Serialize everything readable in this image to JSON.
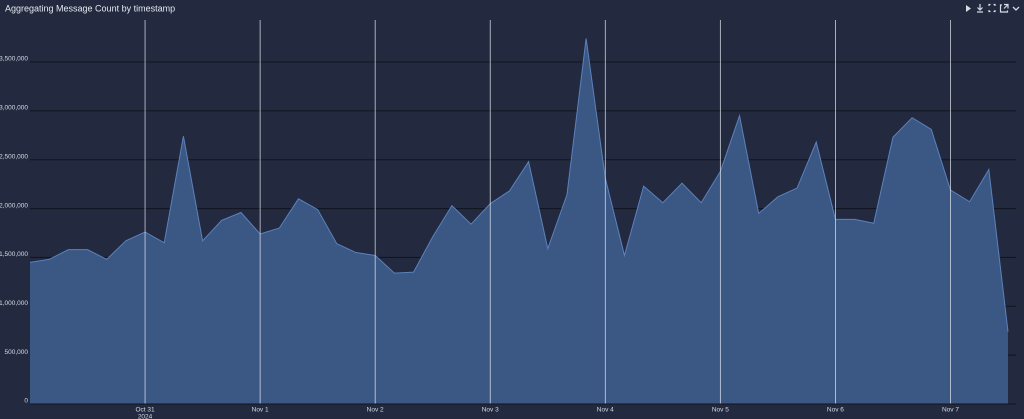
{
  "chart_data": {
    "type": "area",
    "title": "Aggregating Message Count by timestamp",
    "categories": [
      null,
      null,
      null,
      null,
      null,
      null,
      "Oct 31",
      null,
      null,
      null,
      null,
      null,
      "Nov 1",
      null,
      null,
      null,
      null,
      null,
      "Nov 2",
      null,
      null,
      null,
      null,
      null,
      "Nov 3",
      null,
      null,
      null,
      null,
      null,
      "Nov 4",
      null,
      null,
      null,
      null,
      null,
      "Nov 5",
      null,
      null,
      null,
      null,
      null,
      "Nov 6",
      null,
      null,
      null,
      null,
      null,
      "Nov 7",
      null,
      null,
      null
    ],
    "year_label": "2024",
    "values": [
      1450000,
      1480000,
      1580000,
      1580000,
      1480000,
      1670000,
      1760000,
      1650000,
      2740000,
      1670000,
      1880000,
      1960000,
      1740000,
      1800000,
      2100000,
      1990000,
      1640000,
      1550000,
      1520000,
      1340000,
      1350000,
      1710000,
      2030000,
      1840000,
      2050000,
      2180000,
      2480000,
      1590000,
      2140000,
      3740000,
      2310000,
      1520000,
      2230000,
      2060000,
      2260000,
      2060000,
      2380000,
      2950000,
      1950000,
      2120000,
      2210000,
      2680000,
      1890000,
      1890000,
      1850000,
      2730000,
      2930000,
      2810000,
      2190000,
      2070000,
      2400000,
      740000
    ],
    "color": "#3b5784",
    "line_color": "#5b82bd",
    "ylim": [
      0,
      3930000
    ],
    "yticks": [
      {
        "value": 0,
        "label": "0"
      },
      {
        "value": 500000,
        "label": "500,000"
      },
      {
        "value": 1000000,
        "label": "1,000,000"
      },
      {
        "value": 1500000,
        "label": "1,500,000"
      },
      {
        "value": 2000000,
        "label": "2,000,000"
      },
      {
        "value": 2500000,
        "label": "2,500,000"
      },
      {
        "value": 3000000,
        "label": "3,000,000"
      },
      {
        "value": 3500000,
        "label": "3,500,000"
      }
    ],
    "grid": true
  }
}
